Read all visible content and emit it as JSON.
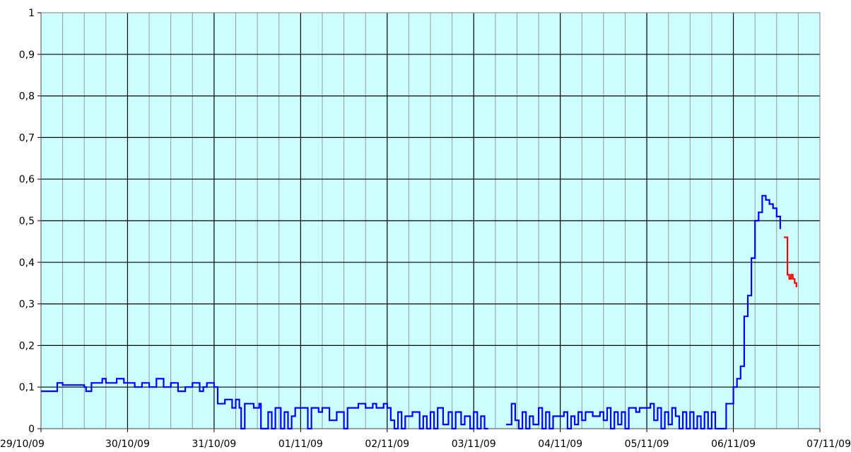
{
  "chart_data": {
    "type": "line",
    "title": "",
    "xlabel": "",
    "ylabel": "",
    "xlim": [
      "29/10/09",
      "07/11/09"
    ],
    "ylim": [
      0,
      1
    ],
    "x_ticks": [
      "29/10/09",
      "30/10/09",
      "31/10/09",
      "01/11/09",
      "02/11/09",
      "03/11/09",
      "04/11/09",
      "05/11/09",
      "06/11/09",
      "07/11/09"
    ],
    "y_ticks": [
      "0",
      "0,1",
      "0,2",
      "0,3",
      "0,4",
      "0,5",
      "0,6",
      "0,7",
      "0,8",
      "0,9",
      "1"
    ],
    "grid": true,
    "minor_x_grid_per_day": 4,
    "colors": {
      "plot_background": "#CCFFFF",
      "major_grid": "#000000",
      "minor_grid": "#999999",
      "series_blue": "#0000FF",
      "series_red": "#FF0000"
    },
    "series": [
      {
        "color": "#0000FF",
        "segments": [
          [
            [
              "29/10/09 00:00",
              0.09
            ],
            [
              "29/10/09 03:00",
              0.09
            ],
            [
              "29/10/09 04:30",
              0.11
            ],
            [
              "29/10/09 06:00",
              0.105
            ],
            [
              "29/10/09 12:00",
              0.1
            ],
            [
              "29/10/09 12:30",
              0.09
            ],
            [
              "29/10/09 14:00",
              0.11
            ],
            [
              "29/10/09 17:00",
              0.12
            ],
            [
              "29/10/09 18:00",
              0.11
            ],
            [
              "29/10/09 21:00",
              0.12
            ],
            [
              "29/10/09 23:00",
              0.11
            ],
            [
              "30/10/09 02:00",
              0.1
            ],
            [
              "30/10/09 04:00",
              0.11
            ],
            [
              "30/10/09 06:00",
              0.1
            ],
            [
              "30/10/09 08:00",
              0.12
            ],
            [
              "30/10/09 10:00",
              0.1
            ],
            [
              "30/10/09 12:00",
              0.11
            ],
            [
              "30/10/09 14:00",
              0.09
            ],
            [
              "30/10/09 16:00",
              0.1
            ],
            [
              "30/10/09 18:00",
              0.11
            ],
            [
              "30/10/09 20:00",
              0.09
            ],
            [
              "30/10/09 21:00",
              0.1
            ],
            [
              "30/10/09 22:00",
              0.11
            ],
            [
              "31/10/09 00:00",
              0.1
            ],
            [
              "31/10/09 01:00",
              0.06
            ],
            [
              "31/10/09 03:00",
              0.07
            ],
            [
              "31/10/09 05:00",
              0.05
            ],
            [
              "31/10/09 06:00",
              0.07
            ],
            [
              "31/10/09 07:00",
              0.05
            ],
            [
              "31/10/09 07:30",
              0.0
            ],
            [
              "31/10/09 08:30",
              0.06
            ],
            [
              "31/10/09 10:00",
              0.06
            ],
            [
              "31/10/09 11:00",
              0.05
            ],
            [
              "31/10/09 12:30",
              0.06
            ],
            [
              "31/10/09 13:00",
              0.0
            ],
            [
              "31/10/09 14:00",
              0.0
            ],
            [
              "31/10/09 15:00",
              0.04
            ],
            [
              "31/10/09 16:00",
              0.0
            ],
            [
              "31/10/09 17:00",
              0.05
            ],
            [
              "31/10/09 18:30",
              0.0
            ],
            [
              "31/10/09 19:30",
              0.04
            ],
            [
              "31/10/09 20:30",
              0.0
            ],
            [
              "31/10/09 21:30",
              0.03
            ],
            [
              "31/10/09 22:30",
              0.05
            ],
            [
              "01/11/09 00:00",
              0.05
            ],
            [
              "01/11/09 02:00",
              0.0
            ],
            [
              "01/11/09 03:00",
              0.05
            ],
            [
              "01/11/09 05:00",
              0.04
            ],
            [
              "01/11/09 06:00",
              0.05
            ],
            [
              "01/11/09 08:00",
              0.02
            ],
            [
              "01/11/09 10:00",
              0.04
            ],
            [
              "01/11/09 12:00",
              0.0
            ],
            [
              "01/11/09 13:00",
              0.05
            ],
            [
              "01/11/09 16:00",
              0.06
            ],
            [
              "01/11/09 18:00",
              0.05
            ],
            [
              "01/11/09 20:00",
              0.06
            ],
            [
              "01/11/09 21:00",
              0.05
            ],
            [
              "01/11/09 23:00",
              0.06
            ],
            [
              "02/11/09 00:00",
              0.05
            ],
            [
              "02/11/09 01:00",
              0.02
            ],
            [
              "02/11/09 02:00",
              0.0
            ],
            [
              "02/11/09 03:00",
              0.04
            ],
            [
              "02/11/09 04:00",
              0.0
            ],
            [
              "02/11/09 05:00",
              0.03
            ],
            [
              "02/11/09 07:00",
              0.04
            ],
            [
              "02/11/09 09:00",
              0.0
            ],
            [
              "02/11/09 10:00",
              0.03
            ],
            [
              "02/11/09 11:00",
              0.0
            ],
            [
              "02/11/09 12:00",
              0.04
            ],
            [
              "02/11/09 13:00",
              0.0
            ],
            [
              "02/11/09 14:00",
              0.05
            ],
            [
              "02/11/09 15:30",
              0.01
            ],
            [
              "02/11/09 17:00",
              0.04
            ],
            [
              "02/11/09 18:00",
              0.0
            ],
            [
              "02/11/09 19:00",
              0.04
            ],
            [
              "02/11/09 20:30",
              0.01
            ],
            [
              "02/11/09 21:30",
              0.03
            ],
            [
              "02/11/09 23:00",
              0.0
            ],
            [
              "03/11/09 00:00",
              0.04
            ],
            [
              "03/11/09 01:00",
              0.0
            ],
            [
              "03/11/09 02:00",
              0.03
            ],
            [
              "03/11/09 03:00",
              0.0
            ],
            [
              "03/11/09 04:00",
              0.0
            ]
          ],
          [
            [
              "03/11/09 09:00",
              0.01
            ],
            [
              "03/11/09 10:30",
              0.06
            ],
            [
              "03/11/09 11:30",
              0.02
            ],
            [
              "03/11/09 12:30",
              0.0
            ],
            [
              "03/11/09 13:30",
              0.04
            ],
            [
              "03/11/09 14:30",
              0.0
            ],
            [
              "03/11/09 15:30",
              0.03
            ],
            [
              "03/11/09 16:30",
              0.01
            ],
            [
              "03/11/09 18:00",
              0.05
            ],
            [
              "03/11/09 19:00",
              0.0
            ],
            [
              "03/11/09 20:00",
              0.04
            ],
            [
              "03/11/09 21:00",
              0.0
            ],
            [
              "03/11/09 22:00",
              0.03
            ],
            [
              "04/11/09 00:00",
              0.03
            ],
            [
              "04/11/09 01:00",
              0.04
            ],
            [
              "04/11/09 02:00",
              0.0
            ],
            [
              "04/11/09 03:00",
              0.03
            ],
            [
              "04/11/09 04:00",
              0.01
            ],
            [
              "04/11/09 05:00",
              0.04
            ],
            [
              "04/11/09 06:00",
              0.02
            ],
            [
              "04/11/09 07:00",
              0.04
            ],
            [
              "04/11/09 09:00",
              0.03
            ],
            [
              "04/11/09 11:00",
              0.04
            ],
            [
              "04/11/09 12:00",
              0.02
            ],
            [
              "04/11/09 13:00",
              0.05
            ],
            [
              "04/11/09 14:00",
              0.0
            ],
            [
              "04/11/09 15:00",
              0.04
            ],
            [
              "04/11/09 16:00",
              0.01
            ],
            [
              "04/11/09 17:00",
              0.04
            ],
            [
              "04/11/09 18:00",
              0.0
            ],
            [
              "04/11/09 19:00",
              0.05
            ],
            [
              "04/11/09 21:00",
              0.04
            ],
            [
              "04/11/09 22:00",
              0.05
            ],
            [
              "05/11/09 00:00",
              0.05
            ],
            [
              "05/11/09 01:00",
              0.06
            ],
            [
              "05/11/09 02:00",
              0.02
            ],
            [
              "05/11/09 03:00",
              0.05
            ],
            [
              "05/11/09 04:00",
              0.0
            ],
            [
              "05/11/09 05:00",
              0.04
            ],
            [
              "05/11/09 06:00",
              0.01
            ],
            [
              "05/11/09 07:00",
              0.05
            ],
            [
              "05/11/09 08:00",
              0.03
            ],
            [
              "05/11/09 09:00",
              0.0
            ],
            [
              "05/11/09 10:00",
              0.04
            ],
            [
              "05/11/09 11:00",
              0.0
            ],
            [
              "05/11/09 12:00",
              0.04
            ],
            [
              "05/11/09 13:00",
              0.0
            ],
            [
              "05/11/09 14:00",
              0.03
            ],
            [
              "05/11/09 15:00",
              0.0
            ],
            [
              "05/11/09 16:00",
              0.04
            ],
            [
              "05/11/09 17:00",
              0.0
            ],
            [
              "05/11/09 18:00",
              0.04
            ],
            [
              "05/11/09 19:00",
              0.0
            ],
            [
              "05/11/09 21:00",
              0.0
            ],
            [
              "05/11/09 22:00",
              0.06
            ],
            [
              "06/11/09 00:00",
              0.1
            ],
            [
              "06/11/09 01:00",
              0.12
            ],
            [
              "06/11/09 02:00",
              0.15
            ],
            [
              "06/11/09 03:00",
              0.27
            ],
            [
              "06/11/09 04:00",
              0.32
            ],
            [
              "06/11/09 05:00",
              0.41
            ],
            [
              "06/11/09 06:00",
              0.5
            ],
            [
              "06/11/09 07:00",
              0.52
            ],
            [
              "06/11/09 08:00",
              0.56
            ],
            [
              "06/11/09 09:00",
              0.55
            ],
            [
              "06/11/09 10:00",
              0.54
            ],
            [
              "06/11/09 11:00",
              0.53
            ],
            [
              "06/11/09 12:00",
              0.51
            ],
            [
              "06/11/09 13:00",
              0.48
            ]
          ]
        ]
      },
      {
        "color": "#FF0000",
        "segments": [
          [
            [
              "06/11/09 14:00",
              0.46
            ],
            [
              "06/11/09 14:30",
              0.46
            ],
            [
              "06/11/09 15:00",
              0.37
            ],
            [
              "06/11/09 15:30",
              0.36
            ],
            [
              "06/11/09 16:00",
              0.37
            ],
            [
              "06/11/09 16:30",
              0.36
            ],
            [
              "06/11/09 17:00",
              0.35
            ],
            [
              "06/11/09 17:30",
              0.34
            ]
          ]
        ]
      }
    ]
  }
}
